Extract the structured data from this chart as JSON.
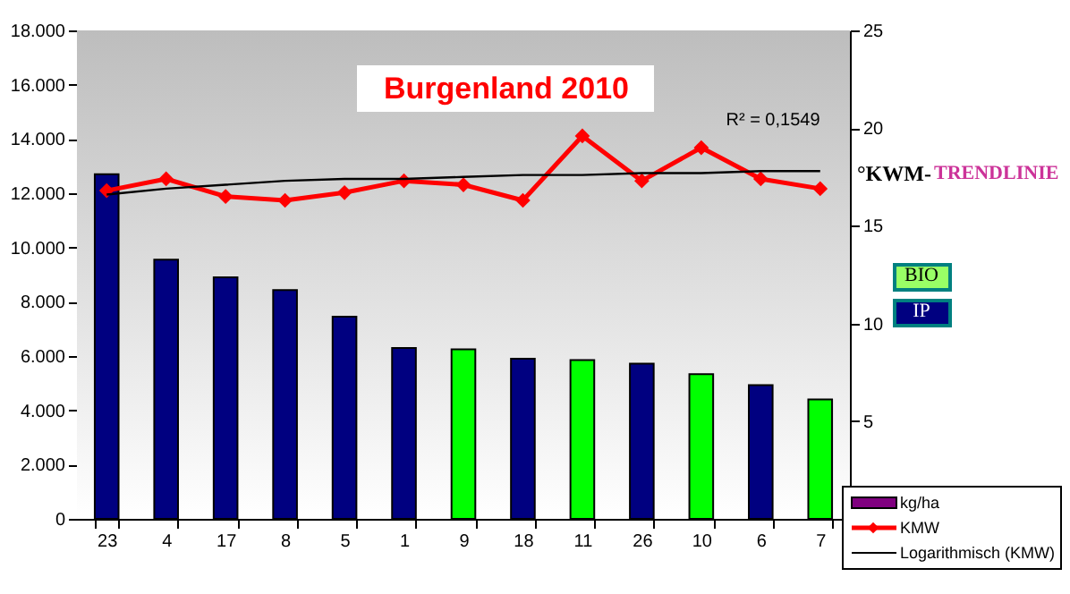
{
  "chart_data": {
    "type": "bar",
    "title": "Burgenland 2010",
    "categories": [
      "23",
      "4",
      "17",
      "8",
      "5",
      "1",
      "9",
      "18",
      "11",
      "26",
      "10",
      "6",
      "7"
    ],
    "series": [
      {
        "name": "kg/ha",
        "color": "#800080",
        "colors": [
          "#000080",
          "#000080",
          "#000080",
          "#000080",
          "#000080",
          "#000080",
          "#00ff00",
          "#000080",
          "#00ff00",
          "#000080",
          "#00ff00",
          "#000080",
          "#00ff00"
        ],
        "values": [
          12700,
          9550,
          8900,
          8430,
          7450,
          6300,
          6250,
          5900,
          5850,
          5720,
          5330,
          4930,
          4400
        ]
      },
      {
        "name": "KMW",
        "type": "line",
        "axis": "y2",
        "color": "#ff0000",
        "marker": "diamond",
        "line_style": "solid",
        "values": [
          16.8,
          17.4,
          16.5,
          16.3,
          16.7,
          17.3,
          17.1,
          16.3,
          19.6,
          17.3,
          19.0,
          17.4,
          16.9
        ]
      },
      {
        "name": "Logarithmisch (KMW)",
        "type": "line",
        "axis": "y2",
        "color": "#000000",
        "marker": "none",
        "line_style": "solid",
        "values": [
          16.6,
          16.9,
          17.1,
          17.3,
          17.4,
          17.4,
          17.5,
          17.6,
          17.6,
          17.7,
          17.7,
          17.8,
          17.8
        ]
      }
    ],
    "ylim": [
      0,
      18000
    ],
    "yticks": [
      0,
      {
        "value": 2000,
        "label": "2.000"
      },
      {
        "value": 4000,
        "label": "4.000"
      },
      {
        "value": 6000,
        "label": "6.000"
      },
      {
        "value": 8000,
        "label": "8.000"
      },
      {
        "value": 10000,
        "label": "10.000"
      },
      {
        "value": 12000,
        "label": "12.000"
      },
      {
        "value": 14000,
        "label": "14.000"
      },
      {
        "value": 16000,
        "label": "16.000"
      },
      {
        "value": 18000,
        "label": "18.000"
      }
    ],
    "y2lim": [
      0,
      25
    ],
    "y2ticks": [
      5,
      10,
      15,
      20,
      25
    ],
    "annotations": [
      "R² = 0,1549",
      "°KWM-",
      "TRENDLINIE",
      "BIO",
      "IP"
    ],
    "legend": "bottom right"
  }
}
